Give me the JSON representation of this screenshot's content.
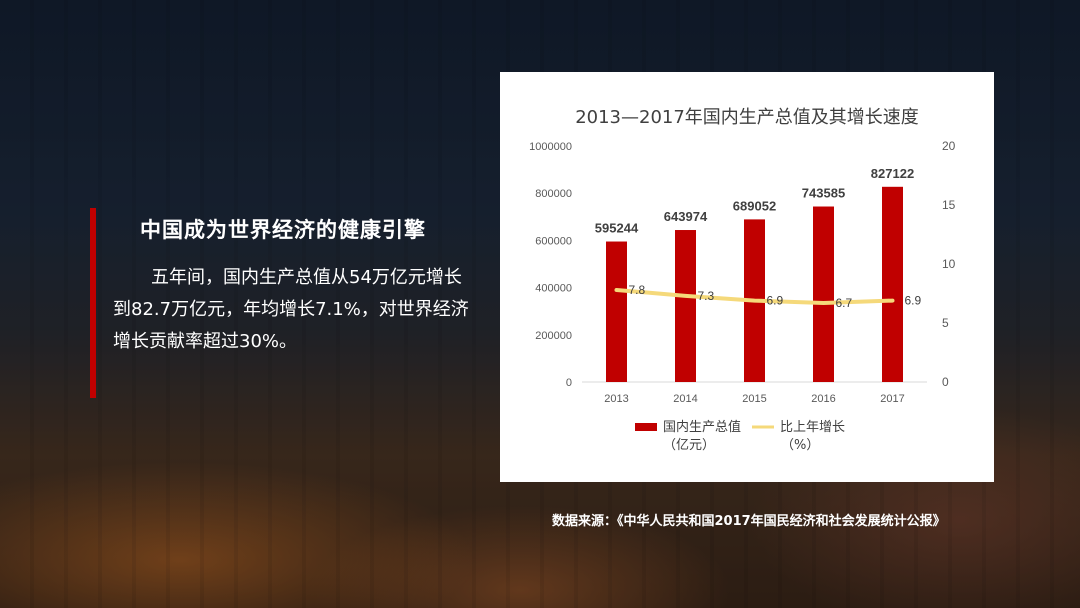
{
  "heading": "中国成为世界经济的健康引擎",
  "paragraph": "五年间，国内生产总值从54万亿元增长到82.7万亿元，年均增长7.1%，对世界经济增长贡献率超过30%。",
  "source": "数据来源：《中华人民共和国2017年国民经济和社会发展统计公报》",
  "colors": {
    "accent": "#c00000",
    "bar": "#c00000",
    "line": "#f5d97a"
  },
  "chart_data": {
    "type": "bar",
    "title": "2013—2017年国内生产总值及其增长速度",
    "categories": [
      "2013",
      "2014",
      "2015",
      "2016",
      "2017"
    ],
    "series": [
      {
        "name": "国内生产总值",
        "unit": "（亿元）",
        "type": "bar",
        "axis": "left",
        "values": [
          595244,
          643974,
          689052,
          743585,
          827122
        ]
      },
      {
        "name": "比上年增长",
        "unit": "（%）",
        "type": "line",
        "axis": "right",
        "values": [
          7.8,
          7.3,
          6.9,
          6.7,
          6.9
        ]
      }
    ],
    "left_axis": {
      "ticks": [
        "0",
        "200000",
        "400000",
        "600000",
        "800000",
        "1000000"
      ],
      "ylim": [
        0,
        1000000
      ]
    },
    "right_axis": {
      "ticks": [
        "0",
        "5",
        "10",
        "15",
        "20"
      ],
      "ylim": [
        0,
        20
      ]
    },
    "legend_position": "bottom",
    "grid": false
  }
}
